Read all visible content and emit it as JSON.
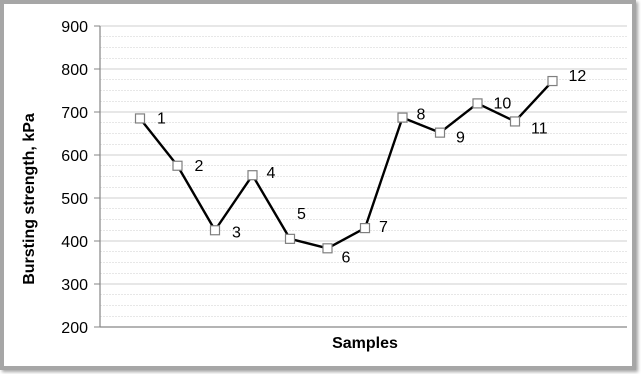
{
  "chart_data": {
    "type": "line",
    "title": "",
    "xlabel": "Samples",
    "ylabel": "Bursting strength, kPa",
    "ylim": [
      200,
      900
    ],
    "y_ticks": [
      200,
      300,
      400,
      500,
      600,
      700,
      800,
      900
    ],
    "grid": true,
    "legend": "none",
    "series": [
      {
        "labels": [
          "1",
          "2",
          "3",
          "4",
          "5",
          "6",
          "7",
          "8",
          "9",
          "10",
          "11",
          "12"
        ],
        "values": [
          685,
          575,
          425,
          553,
          405,
          383,
          430,
          687,
          652,
          720,
          678,
          772
        ]
      }
    ],
    "colors": {
      "line": "#000000",
      "marker_fill": "#ffffff",
      "marker_stroke": "#7f7f7f",
      "frame": "#a6a6a6",
      "grid": "#cfcfcf"
    }
  }
}
